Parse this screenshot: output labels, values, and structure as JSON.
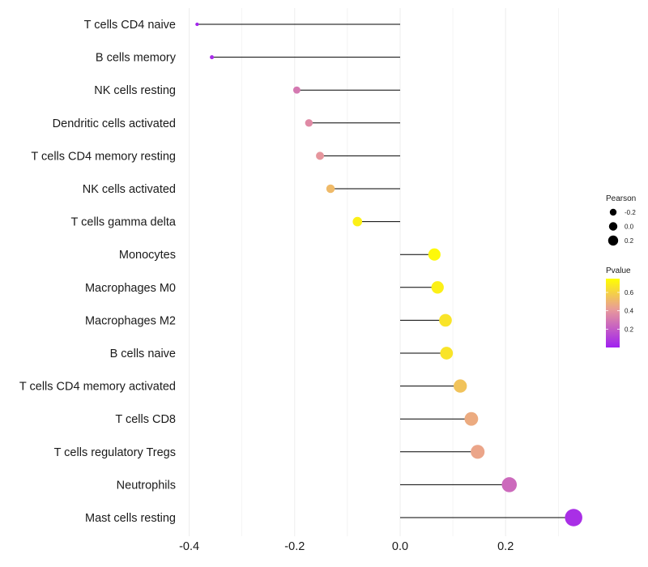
{
  "chart_data": {
    "type": "lollipop",
    "title": "",
    "xlabel": "",
    "ylabel": "",
    "xlim": [
      -0.44,
      0.34
    ],
    "x_ticks": [
      -0.4,
      -0.2,
      0.0,
      0.2
    ],
    "x_tick_labels": [
      "-0.4",
      "-0.2",
      "0.0",
      "0.2"
    ],
    "grid": true,
    "categories": [
      "T cells CD4 naive",
      "B cells memory",
      "NK cells resting",
      "Dendritic cells activated",
      "T cells CD4 memory resting",
      "NK cells activated",
      "T cells gamma delta",
      "Monocytes",
      "Macrophages M0",
      "Macrophages M2",
      "B cells naive",
      "T cells CD4 memory activated",
      "T cells CD8",
      "T cells regulatory  Tregs ",
      "Neutrophils",
      "Mast cells resting"
    ],
    "values": [
      -0.385,
      -0.357,
      -0.196,
      -0.173,
      -0.152,
      -0.132,
      -0.081,
      0.065,
      0.071,
      0.086,
      0.088,
      0.114,
      0.135,
      0.147,
      0.207,
      0.329
    ],
    "pvalues": [
      0.02,
      0.04,
      0.3,
      0.36,
      0.4,
      0.52,
      0.7,
      0.73,
      0.7,
      0.66,
      0.66,
      0.55,
      0.47,
      0.45,
      0.25,
      0.05
    ],
    "legend": {
      "size": {
        "title": "Pearson",
        "entries": [
          {
            "label": "-0.2",
            "value": -0.2
          },
          {
            "label": "0.0",
            "value": 0.0
          },
          {
            "label": "0.2",
            "value": 0.2
          }
        ]
      },
      "color": {
        "title": "Pvalue",
        "ticks": [
          {
            "label": "0.6",
            "value": 0.6
          },
          {
            "label": "0.4",
            "value": 0.4
          },
          {
            "label": "0.2",
            "value": 0.2
          }
        ],
        "range": [
          0.0,
          0.75
        ],
        "low_color": "#a020f0",
        "mid_color": "#e89a9a",
        "high_color": "#ffff00"
      },
      "placement": "right"
    }
  }
}
